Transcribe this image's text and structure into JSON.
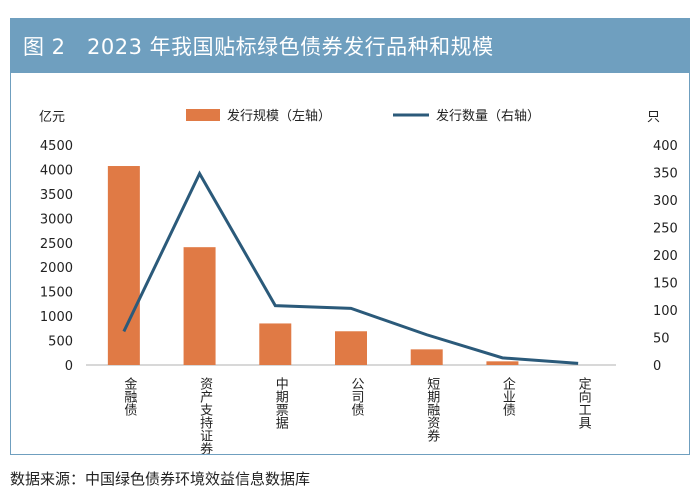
{
  "figure": {
    "title": "图 2　2023 年我国贴标绿色债券发行品种和规模",
    "source": "数据来源：中国绿色债券环境效益信息数据库"
  },
  "colors": {
    "title_bar": "#6f9fbf",
    "bar": "#e07a45",
    "line": "#2b5a7a",
    "axis": "#b0b0b0"
  },
  "chart_data": {
    "type": "bar+line",
    "categories": [
      "金融债",
      "资产支持证券",
      "中期票据",
      "公司债",
      "短期融资券",
      "企业债",
      "定向工具"
    ],
    "series": [
      {
        "name": "发行规模（左轴）",
        "type": "bar",
        "axis": "left",
        "values": [
          4070,
          2410,
          850,
          690,
          320,
          75,
          0
        ]
      },
      {
        "name": "发行数量（右轴）",
        "type": "line",
        "axis": "right",
        "values": [
          61,
          348,
          108,
          103,
          55,
          13,
          3
        ]
      }
    ],
    "left_axis": {
      "label": "亿元",
      "min": 0,
      "max": 4500,
      "step": 500
    },
    "right_axis": {
      "label": "只",
      "min": 0,
      "max": 400,
      "step": 50
    },
    "legend_position": "top-center",
    "grid": false
  }
}
